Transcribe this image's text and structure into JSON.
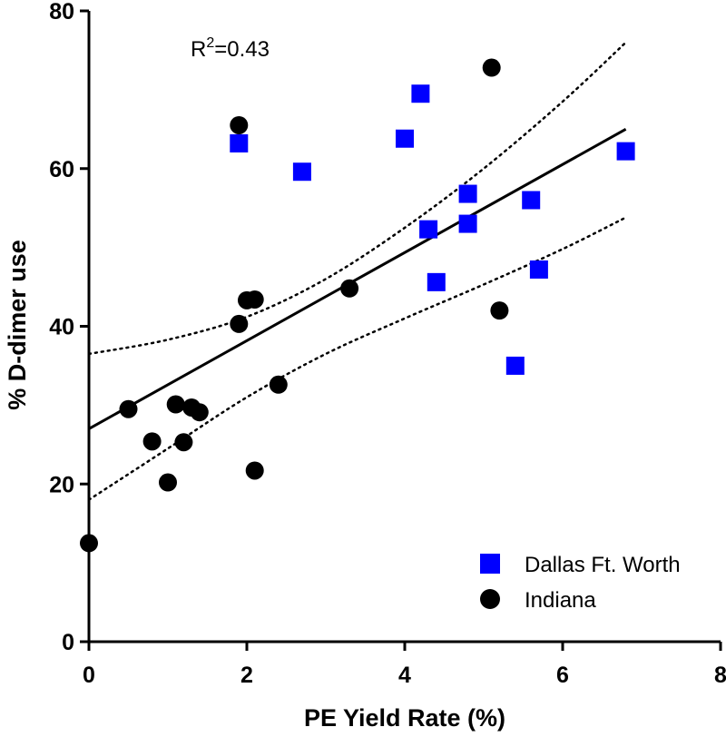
{
  "chart_data": {
    "type": "scatter",
    "xlabel": "PE Yield Rate (%)",
    "ylabel": "% D-dimer use",
    "xlim": [
      0,
      8
    ],
    "ylim": [
      0,
      80
    ],
    "xticks": [
      "0",
      "2",
      "4",
      "6",
      "8"
    ],
    "yticks": [
      "0",
      "20",
      "40",
      "60",
      "80"
    ],
    "annotation": {
      "base": "R",
      "sup": "2",
      "rest": "=0.43"
    },
    "legend_position": "bottom-right",
    "series": [
      {
        "name": "Dallas Ft. Worth",
        "marker": "square",
        "color": "#0000ff",
        "points": [
          [
            1.9,
            63.2
          ],
          [
            2.7,
            59.6
          ],
          [
            4.0,
            63.8
          ],
          [
            4.2,
            69.5
          ],
          [
            4.3,
            52.3
          ],
          [
            4.4,
            45.6
          ],
          [
            4.8,
            56.8
          ],
          [
            4.8,
            53.0
          ],
          [
            5.4,
            35.0
          ],
          [
            5.6,
            56.0
          ],
          [
            5.7,
            47.2
          ],
          [
            6.8,
            62.2
          ]
        ]
      },
      {
        "name": "Indiana",
        "marker": "circle",
        "color": "#000000",
        "points": [
          [
            0.0,
            12.5
          ],
          [
            0.5,
            29.5
          ],
          [
            0.8,
            25.4
          ],
          [
            1.0,
            20.2
          ],
          [
            1.1,
            30.1
          ],
          [
            1.2,
            25.3
          ],
          [
            1.3,
            29.7
          ],
          [
            1.4,
            29.1
          ],
          [
            1.9,
            40.3
          ],
          [
            1.9,
            65.5
          ],
          [
            2.0,
            43.3
          ],
          [
            2.1,
            43.4
          ],
          [
            2.1,
            21.7
          ],
          [
            2.4,
            32.6
          ],
          [
            3.3,
            44.8
          ],
          [
            5.1,
            72.8
          ],
          [
            5.2,
            42.0
          ]
        ]
      }
    ],
    "fit_line": {
      "x": [
        0,
        6.8
      ],
      "y": [
        27.0,
        65.0
      ]
    },
    "confidence_band": {
      "upper": {
        "x": [
          0,
          1,
          2,
          3,
          4,
          5,
          6,
          6.8
        ],
        "y": [
          36.5,
          38.3,
          41.2,
          46.0,
          52.5,
          60.0,
          68.5,
          76.0
        ]
      },
      "lower": {
        "x": [
          0,
          1,
          2,
          3,
          4,
          5,
          6,
          6.8
        ],
        "y": [
          18.0,
          24.5,
          31.0,
          36.5,
          41.0,
          45.3,
          49.8,
          53.8
        ]
      }
    }
  }
}
